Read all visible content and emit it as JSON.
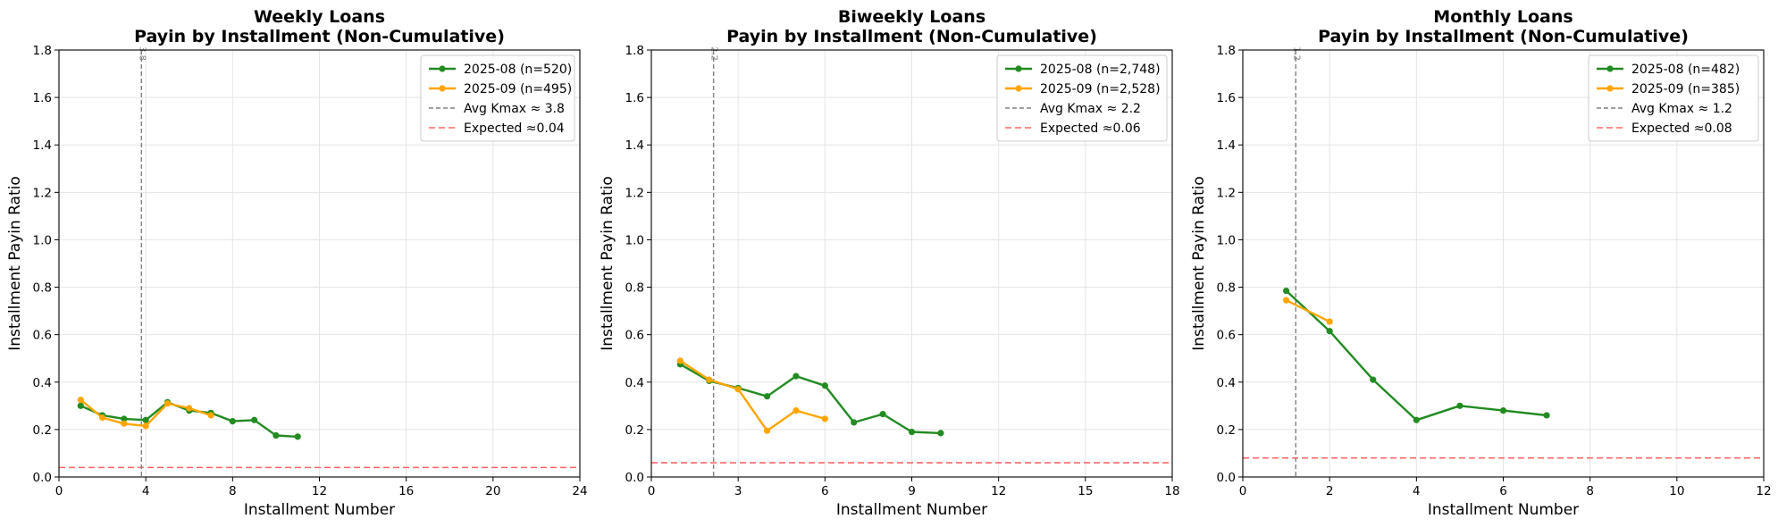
{
  "chart_data": [
    {
      "type": "line",
      "title": [
        "Weekly Loans",
        "Payin by Installment (Non-Cumulative)"
      ],
      "xlabel": "Installment Number",
      "ylabel": "Installment Payin Ratio",
      "xlim": [
        0,
        24
      ],
      "ylim": [
        0,
        1.8
      ],
      "xticks": [
        0,
        4,
        8,
        12,
        16,
        20,
        24
      ],
      "yticks": [
        0.0,
        0.2,
        0.4,
        0.6,
        0.8,
        1.0,
        1.2,
        1.4,
        1.6,
        1.8
      ],
      "grid": true,
      "legend_position": "upper right",
      "series": [
        {
          "name": "2025-08 (n=520)",
          "color": "#228B22",
          "x": [
            1,
            2,
            3,
            4,
            5,
            6,
            7,
            8,
            9,
            10,
            11
          ],
          "y": [
            0.3,
            0.26,
            0.245,
            0.24,
            0.315,
            0.28,
            0.27,
            0.235,
            0.24,
            0.175,
            0.17
          ]
        },
        {
          "name": "2025-09 (n=495)",
          "color": "#FFA500",
          "x": [
            1,
            2,
            3,
            4,
            5,
            6,
            7
          ],
          "y": [
            0.325,
            0.25,
            0.225,
            0.215,
            0.31,
            0.29,
            0.26
          ]
        }
      ],
      "vline": {
        "x": 3.8,
        "label": "3.8",
        "legend": "Avg Kmax ≈ 3.8",
        "color": "#808080"
      },
      "hline": {
        "y": 0.04,
        "legend": "Expected ≈0.04",
        "color": "#FF6666"
      }
    },
    {
      "type": "line",
      "title": [
        "Biweekly Loans",
        "Payin by Installment (Non-Cumulative)"
      ],
      "xlabel": "Installment Number",
      "ylabel": "Installment Payin Ratio",
      "xlim": [
        0,
        18
      ],
      "ylim": [
        0,
        1.8
      ],
      "xticks": [
        0,
        3,
        6,
        9,
        12,
        15,
        18
      ],
      "yticks": [
        0.0,
        0.2,
        0.4,
        0.6,
        0.8,
        1.0,
        1.2,
        1.4,
        1.6,
        1.8
      ],
      "grid": true,
      "legend_position": "upper right",
      "series": [
        {
          "name": "2025-08 (n=2,748)",
          "color": "#228B22",
          "x": [
            1,
            2,
            3,
            4,
            5,
            6,
            7,
            8,
            9,
            10
          ],
          "y": [
            0.475,
            0.405,
            0.375,
            0.34,
            0.425,
            0.385,
            0.23,
            0.265,
            0.19,
            0.185
          ]
        },
        {
          "name": "2025-09 (n=2,528)",
          "color": "#FFA500",
          "x": [
            1,
            2,
            3,
            4,
            5,
            6
          ],
          "y": [
            0.49,
            0.41,
            0.37,
            0.195,
            0.28,
            0.245
          ]
        }
      ],
      "vline": {
        "x": 2.15,
        "label": "2.2",
        "legend": "Avg Kmax ≈ 2.2",
        "color": "#808080"
      },
      "hline": {
        "y": 0.06,
        "legend": "Expected ≈0.06",
        "color": "#FF6666"
      }
    },
    {
      "type": "line",
      "title": [
        "Monthly Loans",
        "Payin by Installment (Non-Cumulative)"
      ],
      "xlabel": "Installment Number",
      "ylabel": "Installment Payin Ratio",
      "xlim": [
        0,
        12
      ],
      "ylim": [
        0,
        1.8
      ],
      "xticks": [
        0,
        2,
        4,
        6,
        8,
        10,
        12
      ],
      "yticks": [
        0.0,
        0.2,
        0.4,
        0.6,
        0.8,
        1.0,
        1.2,
        1.4,
        1.6,
        1.8
      ],
      "grid": true,
      "legend_position": "upper right",
      "series": [
        {
          "name": "2025-08 (n=482)",
          "color": "#228B22",
          "x": [
            1,
            2,
            3,
            4,
            5,
            6,
            7
          ],
          "y": [
            0.785,
            0.615,
            0.41,
            0.24,
            0.3,
            0.28,
            0.26
          ]
        },
        {
          "name": "2025-09 (n=385)",
          "color": "#FFA500",
          "x": [
            1,
            2
          ],
          "y": [
            0.745,
            0.655
          ]
        }
      ],
      "vline": {
        "x": 1.22,
        "label": "1.2",
        "legend": "Avg Kmax ≈ 1.2",
        "color": "#808080"
      },
      "hline": {
        "y": 0.08,
        "legend": "Expected ≈0.08",
        "color": "#FF6666"
      }
    }
  ]
}
